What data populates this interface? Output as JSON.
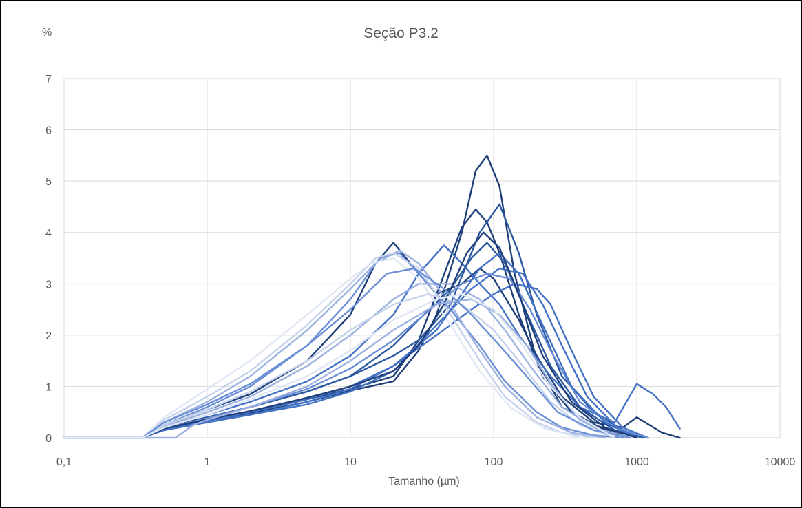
{
  "chart_data": {
    "type": "line",
    "title": "Seção P3.2",
    "ylabel": "%",
    "xlabel": "Tamanho (µm)",
    "x_scale": "log",
    "xlim": [
      0.1,
      10000
    ],
    "ylim": [
      0,
      7
    ],
    "x_ticks": [
      "0,1",
      "1",
      "10",
      "100",
      "1000",
      "10000"
    ],
    "y_ticks": [
      "0",
      "1",
      "2",
      "3",
      "4",
      "5",
      "6",
      "7"
    ],
    "grid": true,
    "legend": "none",
    "colors": [
      "#1f3f7a",
      "#2d5aa0",
      "#4472c4",
      "#6b8fd6",
      "#9db2e0",
      "#c5d2ec",
      "#dfe6f4"
    ],
    "series": [
      {
        "color": "#1f3f7a",
        "x": [
          0.35,
          0.5,
          1,
          2,
          5,
          10,
          20,
          30,
          40,
          60,
          75,
          90,
          110,
          140,
          200,
          300,
          500,
          800,
          1200
        ],
        "y": [
          0,
          0.15,
          0.32,
          0.48,
          0.7,
          0.92,
          1.1,
          1.7,
          2.4,
          4.0,
          5.2,
          5.5,
          4.9,
          3.2,
          1.5,
          0.6,
          0.25,
          0.08,
          0
        ]
      },
      {
        "color": "#1f3f7a",
        "x": [
          0.35,
          0.5,
          1,
          2,
          5,
          10,
          20,
          30,
          40,
          60,
          75,
          90,
          110,
          150,
          220,
          350,
          600,
          900
        ],
        "y": [
          0,
          0.18,
          0.35,
          0.5,
          0.75,
          0.95,
          1.2,
          1.9,
          2.8,
          4.1,
          4.45,
          4.2,
          3.6,
          2.4,
          1.2,
          0.5,
          0.15,
          0
        ]
      },
      {
        "color": "#2d5aa0",
        "x": [
          0.35,
          0.5,
          1,
          2,
          5,
          10,
          20,
          30,
          50,
          80,
          110,
          150,
          200,
          300,
          500,
          800,
          1200
        ],
        "y": [
          0,
          0.2,
          0.4,
          0.6,
          0.9,
          1.2,
          1.6,
          1.9,
          2.6,
          4.0,
          4.55,
          3.6,
          2.4,
          1.2,
          0.5,
          0.15,
          0
        ]
      },
      {
        "color": "#1f3f7a",
        "x": [
          0.35,
          0.5,
          1,
          2,
          5,
          10,
          15,
          20,
          30,
          40,
          60,
          80,
          100,
          150,
          200,
          300,
          500,
          800,
          1000,
          1500,
          2000
        ],
        "y": [
          0,
          0.25,
          0.55,
          0.85,
          1.5,
          2.4,
          3.4,
          3.8,
          3.2,
          2.8,
          3.0,
          3.3,
          3.1,
          2.3,
          1.6,
          0.8,
          0.3,
          0.2,
          0.4,
          0.1,
          0
        ]
      },
      {
        "color": "#4472c4",
        "x": [
          0.35,
          0.5,
          1,
          2,
          5,
          10,
          20,
          30,
          45,
          60,
          80,
          110,
          150,
          250,
          400,
          700,
          1000,
          1300,
          1600,
          2000
        ],
        "y": [
          0,
          0.2,
          0.45,
          0.7,
          1.1,
          1.6,
          2.4,
          3.2,
          3.75,
          3.4,
          3.0,
          2.6,
          2.0,
          1.2,
          0.6,
          0.3,
          1.05,
          0.85,
          0.6,
          0.18
        ]
      },
      {
        "color": "#4472c4",
        "x": [
          0.35,
          0.5,
          1,
          2,
          5,
          10,
          20,
          40,
          70,
          110,
          160,
          220,
          300,
          450,
          700,
          1000
        ],
        "y": [
          0,
          0.15,
          0.3,
          0.45,
          0.65,
          0.9,
          1.3,
          2.2,
          2.9,
          3.3,
          3.2,
          2.6,
          1.8,
          0.8,
          0.25,
          0
        ]
      },
      {
        "color": "#4472c4",
        "x": [
          0.35,
          0.5,
          1,
          2,
          5,
          10,
          20,
          40,
          70,
          100,
          140,
          200,
          250,
          350,
          500,
          800,
          1200
        ],
        "y": [
          0,
          0.15,
          0.32,
          0.5,
          0.75,
          1.0,
          1.4,
          2.0,
          2.5,
          2.8,
          3.0,
          2.9,
          2.6,
          1.7,
          0.8,
          0.2,
          0
        ]
      },
      {
        "color": "#6b8fd6",
        "x": [
          0.35,
          0.5,
          1,
          2,
          5,
          10,
          16,
          22,
          30,
          50,
          80,
          120,
          200,
          300,
          500,
          800
        ],
        "y": [
          0,
          0.25,
          0.6,
          1.0,
          1.8,
          2.7,
          3.5,
          3.6,
          3.2,
          2.5,
          1.8,
          1.1,
          0.5,
          0.2,
          0.05,
          0
        ]
      },
      {
        "color": "#9db2e0",
        "x": [
          0.35,
          0.5,
          1,
          2,
          5,
          10,
          15,
          22,
          30,
          50,
          80,
          120,
          200,
          350,
          600
        ],
        "y": [
          0,
          0.3,
          0.7,
          1.2,
          2.1,
          2.9,
          3.4,
          3.65,
          3.4,
          2.6,
          1.7,
          1.0,
          0.4,
          0.1,
          0
        ]
      },
      {
        "color": "#c5d2ec",
        "x": [
          0.35,
          0.5,
          1,
          2,
          5,
          10,
          15,
          20,
          30,
          50,
          80,
          120,
          200,
          300,
          500
        ],
        "y": [
          0,
          0.35,
          0.8,
          1.3,
          2.2,
          3.0,
          3.5,
          3.6,
          3.3,
          2.4,
          1.5,
          0.8,
          0.3,
          0.1,
          0
        ]
      },
      {
        "color": "#2d5aa0",
        "x": [
          0.35,
          0.5,
          1,
          2,
          5,
          10,
          20,
          30,
          50,
          70,
          90,
          120,
          160,
          250,
          400,
          700,
          1100
        ],
        "y": [
          0,
          0.2,
          0.4,
          0.6,
          0.9,
          1.2,
          1.8,
          2.3,
          2.9,
          3.5,
          3.8,
          3.4,
          2.6,
          1.4,
          0.6,
          0.15,
          0
        ]
      },
      {
        "color": "#6b8fd6",
        "x": [
          0.35,
          0.5,
          1,
          2,
          5,
          10,
          20,
          40,
          60,
          90,
          130,
          180,
          250,
          400,
          700,
          1200
        ],
        "y": [
          0,
          0.18,
          0.38,
          0.6,
          0.95,
          1.35,
          1.9,
          2.6,
          3.0,
          3.2,
          3.1,
          2.5,
          1.7,
          0.7,
          0.2,
          0
        ]
      },
      {
        "color": "#9db2e0",
        "x": [
          0.35,
          0.5,
          1,
          2,
          5,
          10,
          20,
          30,
          50,
          80,
          120,
          180,
          300,
          500,
          900
        ],
        "y": [
          0,
          0.22,
          0.5,
          0.8,
          1.4,
          2.0,
          2.7,
          3.0,
          3.0,
          2.7,
          2.1,
          1.4,
          0.6,
          0.2,
          0
        ]
      },
      {
        "color": "#dfe6f4",
        "x": [
          0.35,
          0.5,
          1,
          2,
          5,
          10,
          14,
          20,
          30,
          50,
          80,
          130,
          220,
          400
        ],
        "y": [
          0,
          0.4,
          0.95,
          1.5,
          2.4,
          3.1,
          3.4,
          3.5,
          3.1,
          2.2,
          1.3,
          0.6,
          0.2,
          0
        ]
      },
      {
        "color": "#c5d2ec",
        "x": [
          0.35,
          0.5,
          1,
          2,
          5,
          10,
          20,
          35,
          60,
          100,
          160,
          250,
          400,
          700
        ],
        "y": [
          0,
          0.25,
          0.55,
          0.9,
          1.5,
          2.1,
          2.6,
          2.8,
          2.6,
          2.1,
          1.4,
          0.7,
          0.25,
          0
        ]
      },
      {
        "color": "#4472c4",
        "x": [
          0.35,
          0.5,
          1,
          2,
          5,
          10,
          20,
          40,
          60,
          80,
          110,
          150,
          220,
          350,
          600,
          1000
        ],
        "y": [
          0,
          0.15,
          0.3,
          0.45,
          0.7,
          0.95,
          1.4,
          2.1,
          2.8,
          3.3,
          3.6,
          3.2,
          2.2,
          1.0,
          0.3,
          0
        ]
      },
      {
        "color": "#1f3f7a",
        "x": [
          0.35,
          0.5,
          1,
          2,
          5,
          10,
          20,
          30,
          45,
          65,
          85,
          110,
          150,
          220,
          350,
          600,
          1000
        ],
        "y": [
          0,
          0.18,
          0.36,
          0.52,
          0.78,
          1.0,
          1.3,
          1.8,
          2.6,
          3.6,
          4.0,
          3.7,
          2.8,
          1.6,
          0.7,
          0.2,
          0
        ]
      },
      {
        "color": "#9db2e0",
        "x": [
          0.6,
          0.8,
          1,
          2,
          5,
          10,
          20,
          40,
          70,
          110,
          170,
          260,
          400,
          700
        ],
        "y": [
          0,
          0.25,
          0.35,
          0.6,
          1.0,
          1.5,
          2.1,
          2.6,
          2.7,
          2.4,
          1.8,
          1.0,
          0.35,
          0
        ]
      },
      {
        "color": "#6b8fd6",
        "x": [
          0.35,
          0.5,
          1,
          2,
          5,
          10,
          18,
          28,
          45,
          70,
          110,
          170,
          280,
          500,
          900
        ],
        "y": [
          0,
          0.3,
          0.65,
          1.05,
          1.8,
          2.5,
          3.2,
          3.3,
          2.9,
          2.4,
          1.8,
          1.2,
          0.5,
          0.15,
          0
        ]
      },
      {
        "color": "#dfe6f4",
        "x": [
          0.35,
          0.5,
          1,
          2,
          5,
          10,
          20,
          40,
          60,
          100,
          150,
          250,
          400,
          700
        ],
        "y": [
          0,
          0.2,
          0.45,
          0.75,
          1.2,
          1.7,
          2.3,
          2.7,
          2.8,
          2.5,
          1.9,
          1.0,
          0.4,
          0
        ]
      }
    ]
  }
}
